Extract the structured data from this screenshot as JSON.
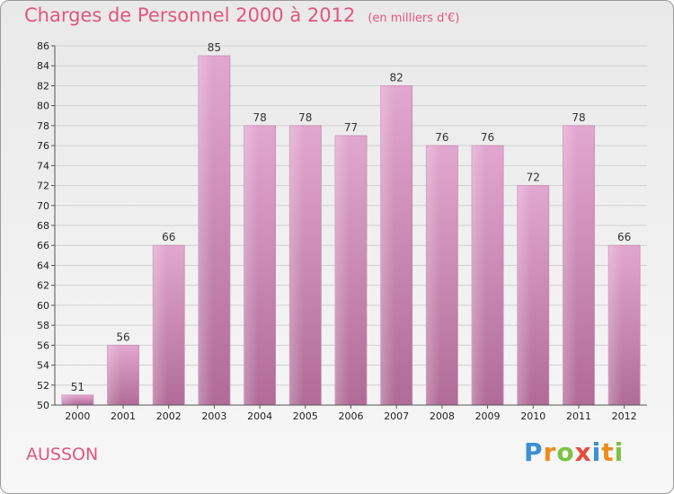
{
  "title": "Charges de Personnel 2000 à 2012",
  "unit": "(en milliers d'€)",
  "commune": "AUSSON",
  "logo": {
    "letters": [
      "P",
      "r",
      "o",
      "x",
      "i",
      "t",
      "i"
    ],
    "colors": [
      "#3b8fd6",
      "#f08a1c",
      "#7cc242",
      "#e64a3b",
      "#3b8fd6",
      "#f08a1c",
      "#7cc242"
    ]
  },
  "colors": {
    "bar": "#d99bc3",
    "title": "#e2567e"
  },
  "chart_data": {
    "type": "bar",
    "categories": [
      "2000",
      "2001",
      "2002",
      "2003",
      "2004",
      "2005",
      "2006",
      "2007",
      "2008",
      "2009",
      "2010",
      "2011",
      "2012"
    ],
    "values": [
      51,
      56,
      66,
      85,
      78,
      78,
      77,
      82,
      76,
      76,
      72,
      78,
      66
    ],
    "ylim": [
      50,
      86
    ],
    "yticks": [
      50,
      52,
      54,
      56,
      58,
      60,
      62,
      64,
      66,
      68,
      70,
      72,
      74,
      76,
      78,
      80,
      82,
      84,
      86
    ],
    "grid": true
  }
}
